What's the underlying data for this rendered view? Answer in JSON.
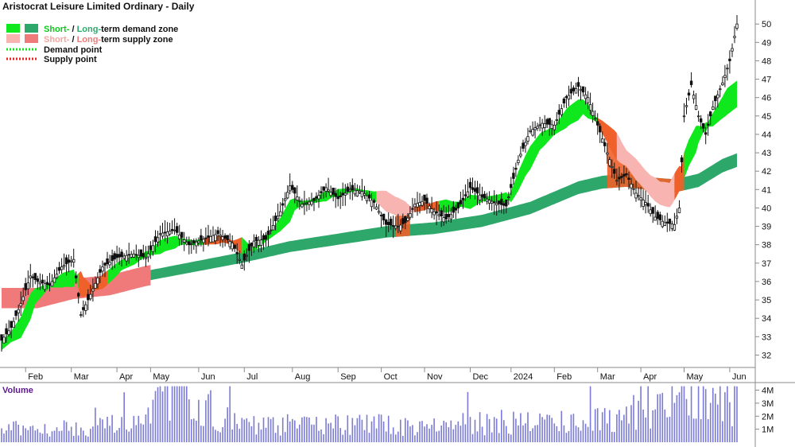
{
  "chart_data": {
    "type": "candlestick",
    "title": "Aristocrat Leisure Limited Ordinary - Daily",
    "legend": {
      "demand_zone": {
        "short": "Short-",
        "sep": " / ",
        "long": "Long-",
        "rest": "term demand zone"
      },
      "supply_zone": {
        "short": "Short-",
        "sep": " / ",
        "long": "Long-",
        "rest": "term supply zone"
      },
      "demand_point": "Demand point",
      "supply_point": "Supply point"
    },
    "x_month_labels": [
      "Feb",
      "Mar",
      "Apr",
      "May",
      "Jun",
      "Jul",
      "Aug",
      "Sep",
      "Oct",
      "Nov",
      "Dec",
      "2024",
      "Feb",
      "Mar",
      "Apr",
      "May",
      "Jun"
    ],
    "price_axis": {
      "min": 31.5,
      "max": 50.7,
      "ticks": [
        32,
        33,
        34,
        35,
        36,
        37,
        38,
        39,
        40,
        41,
        42,
        43,
        44,
        45,
        46,
        47,
        48,
        49,
        50
      ]
    },
    "volume_axis": {
      "label": "Volume",
      "min": 0,
      "max": 4.4,
      "ticks": [
        1,
        2,
        3,
        4
      ],
      "tick_labels": [
        "1M",
        "2M",
        "3M",
        "4M"
      ]
    },
    "close_series": [
      {
        "i": 0,
        "v": 32.8
      },
      {
        "i": 4,
        "v": 33.5
      },
      {
        "i": 8,
        "v": 34.8
      },
      {
        "i": 12,
        "v": 36.3
      },
      {
        "i": 15,
        "v": 36.0
      },
      {
        "i": 20,
        "v": 35.8
      },
      {
        "i": 25,
        "v": 36.8
      },
      {
        "i": 30,
        "v": 37.2
      },
      {
        "i": 33,
        "v": 34.2
      },
      {
        "i": 36,
        "v": 35.0
      },
      {
        "i": 42,
        "v": 36.8
      },
      {
        "i": 48,
        "v": 37.3
      },
      {
        "i": 55,
        "v": 37.5
      },
      {
        "i": 60,
        "v": 37.3
      },
      {
        "i": 66,
        "v": 38.6
      },
      {
        "i": 72,
        "v": 38.8
      },
      {
        "i": 78,
        "v": 38.0
      },
      {
        "i": 84,
        "v": 38.3
      },
      {
        "i": 90,
        "v": 38.6
      },
      {
        "i": 96,
        "v": 38.1
      },
      {
        "i": 100,
        "v": 36.9
      },
      {
        "i": 105,
        "v": 38.2
      },
      {
        "i": 110,
        "v": 38.3
      },
      {
        "i": 116,
        "v": 39.8
      },
      {
        "i": 120,
        "v": 41.2
      },
      {
        "i": 125,
        "v": 40.2
      },
      {
        "i": 130,
        "v": 40.4
      },
      {
        "i": 135,
        "v": 41.1
      },
      {
        "i": 140,
        "v": 40.5
      },
      {
        "i": 145,
        "v": 41.0
      },
      {
        "i": 150,
        "v": 40.9
      },
      {
        "i": 155,
        "v": 40.3
      },
      {
        "i": 160,
        "v": 39.1
      },
      {
        "i": 165,
        "v": 39.0
      },
      {
        "i": 168,
        "v": 39.2
      },
      {
        "i": 172,
        "v": 40.2
      },
      {
        "i": 176,
        "v": 40.4
      },
      {
        "i": 180,
        "v": 39.8
      },
      {
        "i": 185,
        "v": 39.4
      },
      {
        "i": 190,
        "v": 40.0
      },
      {
        "i": 195,
        "v": 41.1
      },
      {
        "i": 200,
        "v": 40.6
      },
      {
        "i": 205,
        "v": 40.3
      },
      {
        "i": 210,
        "v": 40.1
      },
      {
        "i": 215,
        "v": 42.6
      },
      {
        "i": 220,
        "v": 44.2
      },
      {
        "i": 225,
        "v": 44.6
      },
      {
        "i": 230,
        "v": 44.5
      },
      {
        "i": 235,
        "v": 46.0
      },
      {
        "i": 240,
        "v": 46.6
      },
      {
        "i": 244,
        "v": 46.0
      },
      {
        "i": 248,
        "v": 44.5
      },
      {
        "i": 252,
        "v": 43.0
      },
      {
        "i": 256,
        "v": 41.5
      },
      {
        "i": 260,
        "v": 41.8
      },
      {
        "i": 264,
        "v": 40.8
      },
      {
        "i": 268,
        "v": 40.3
      },
      {
        "i": 272,
        "v": 39.5
      },
      {
        "i": 276,
        "v": 39.2
      },
      {
        "i": 280,
        "v": 39.1
      },
      {
        "i": 282,
        "v": 40.0
      },
      {
        "i": 284,
        "v": 45.0
      },
      {
        "i": 287,
        "v": 46.7
      },
      {
        "i": 290,
        "v": 45.0
      },
      {
        "i": 293,
        "v": 44.0
      },
      {
        "i": 296,
        "v": 45.5
      },
      {
        "i": 300,
        "v": 46.8
      },
      {
        "i": 303,
        "v": 48.0
      },
      {
        "i": 306,
        "v": 50.0
      }
    ],
    "short_term_zone_mid": [
      {
        "i": 0,
        "v": 32.5
      },
      {
        "i": 8,
        "v": 33.5
      },
      {
        "i": 14,
        "v": 35.2
      },
      {
        "i": 20,
        "v": 35.8
      },
      {
        "i": 26,
        "v": 36.1
      },
      {
        "i": 31,
        "v": 36.2
      },
      {
        "i": 34,
        "v": 35.7
      },
      {
        "i": 38,
        "v": 35.6
      },
      {
        "i": 44,
        "v": 36.2
      },
      {
        "i": 50,
        "v": 36.9
      },
      {
        "i": 56,
        "v": 37.2
      },
      {
        "i": 62,
        "v": 37.6
      },
      {
        "i": 68,
        "v": 38.0
      },
      {
        "i": 74,
        "v": 38.2
      },
      {
        "i": 80,
        "v": 38.1
      },
      {
        "i": 86,
        "v": 38.2
      },
      {
        "i": 92,
        "v": 38.3
      },
      {
        "i": 98,
        "v": 38.0
      },
      {
        "i": 104,
        "v": 37.8
      },
      {
        "i": 110,
        "v": 38.3
      },
      {
        "i": 116,
        "v": 39.1
      },
      {
        "i": 122,
        "v": 40.2
      },
      {
        "i": 128,
        "v": 40.3
      },
      {
        "i": 134,
        "v": 40.6
      },
      {
        "i": 140,
        "v": 40.8
      },
      {
        "i": 146,
        "v": 41.0
      },
      {
        "i": 152,
        "v": 40.8
      },
      {
        "i": 158,
        "v": 40.5
      },
      {
        "i": 164,
        "v": 40.1
      },
      {
        "i": 170,
        "v": 39.9
      },
      {
        "i": 176,
        "v": 40.1
      },
      {
        "i": 182,
        "v": 40.1
      },
      {
        "i": 188,
        "v": 40.1
      },
      {
        "i": 194,
        "v": 40.3
      },
      {
        "i": 200,
        "v": 40.5
      },
      {
        "i": 206,
        "v": 40.5
      },
      {
        "i": 212,
        "v": 40.6
      },
      {
        "i": 218,
        "v": 42.3
      },
      {
        "i": 224,
        "v": 43.6
      },
      {
        "i": 230,
        "v": 44.2
      },
      {
        "i": 236,
        "v": 45.0
      },
      {
        "i": 242,
        "v": 45.5
      },
      {
        "i": 246,
        "v": 45.0
      },
      {
        "i": 250,
        "v": 44.4
      },
      {
        "i": 254,
        "v": 43.7
      },
      {
        "i": 258,
        "v": 43.0
      },
      {
        "i": 262,
        "v": 42.4
      },
      {
        "i": 266,
        "v": 41.8
      },
      {
        "i": 270,
        "v": 41.2
      },
      {
        "i": 274,
        "v": 40.8
      },
      {
        "i": 278,
        "v": 40.7
      },
      {
        "i": 282,
        "v": 41.6
      },
      {
        "i": 286,
        "v": 43.0
      },
      {
        "i": 290,
        "v": 44.0
      },
      {
        "i": 296,
        "v": 44.8
      },
      {
        "i": 302,
        "v": 45.8
      },
      {
        "i": 306,
        "v": 46.2
      }
    ],
    "long_term_zone_mid": [
      {
        "i": 0,
        "v": 35.1
      },
      {
        "i": 15,
        "v": 35.1
      },
      {
        "i": 30,
        "v": 35.6
      },
      {
        "i": 45,
        "v": 35.8
      },
      {
        "i": 60,
        "v": 36.3
      },
      {
        "i": 80,
        "v": 36.8
      },
      {
        "i": 100,
        "v": 37.3
      },
      {
        "i": 120,
        "v": 37.9
      },
      {
        "i": 140,
        "v": 38.3
      },
      {
        "i": 160,
        "v": 38.7
      },
      {
        "i": 180,
        "v": 38.9
      },
      {
        "i": 200,
        "v": 39.3
      },
      {
        "i": 220,
        "v": 40.0
      },
      {
        "i": 240,
        "v": 41.1
      },
      {
        "i": 250,
        "v": 41.4
      },
      {
        "i": 260,
        "v": 41.5
      },
      {
        "i": 270,
        "v": 41.3
      },
      {
        "i": 280,
        "v": 41.2
      },
      {
        "i": 290,
        "v": 41.5
      },
      {
        "i": 300,
        "v": 42.3
      },
      {
        "i": 306,
        "v": 42.6
      }
    ],
    "zone_states": {
      "short_term": [
        {
          "from": 0,
          "to": 32,
          "state": "demand"
        },
        {
          "from": 32,
          "to": 44,
          "state": "supply"
        },
        {
          "from": 44,
          "to": 84,
          "state": "demand"
        },
        {
          "from": 84,
          "to": 100,
          "state": "supply"
        },
        {
          "from": 100,
          "to": 156,
          "state": "demand"
        },
        {
          "from": 156,
          "to": 172,
          "state": "supply-light"
        },
        {
          "from": 172,
          "to": 182,
          "state": "supply"
        },
        {
          "from": 182,
          "to": 248,
          "state": "demand"
        },
        {
          "from": 248,
          "to": 256,
          "state": "supply"
        },
        {
          "from": 256,
          "to": 280,
          "state": "supply-light"
        },
        {
          "from": 280,
          "to": 284,
          "state": "supply"
        },
        {
          "from": 284,
          "to": 307,
          "state": "demand"
        }
      ],
      "long_term": [
        {
          "from": 0,
          "to": 62,
          "state": "supply"
        },
        {
          "from": 62,
          "to": 307,
          "state": "demand"
        }
      ],
      "long_term_overlay_supply": [
        {
          "from": 164,
          "to": 170
        },
        {
          "from": 252,
          "to": 284
        }
      ]
    },
    "volume_profile": [
      {
        "i": 0,
        "v": 1.0
      },
      {
        "i": 30,
        "v": 1.2
      },
      {
        "i": 60,
        "v": 1.4
      },
      {
        "i": 70,
        "v": 4.2
      },
      {
        "i": 100,
        "v": 1.3
      },
      {
        "i": 140,
        "v": 1.4
      },
      {
        "i": 180,
        "v": 1.3
      },
      {
        "i": 200,
        "v": 1.5
      },
      {
        "i": 220,
        "v": 1.6
      },
      {
        "i": 248,
        "v": 1.7
      },
      {
        "i": 284,
        "v": 3.8
      },
      {
        "i": 300,
        "v": 2.5
      },
      {
        "i": 306,
        "v": 4.0
      }
    ],
    "colors": {
      "demand_short": "#10e81e",
      "demand_long": "#2ea86a",
      "supply_short": "#f0602a",
      "supply_short_light": "#f8b4b0",
      "supply_long": "#f07a7a",
      "candle": "#111111",
      "volume_bar": "#7b7bd6",
      "volume_label": "#5a1a8c",
      "supply_point": "#e82020",
      "axis": "#8a8a8a"
    }
  }
}
